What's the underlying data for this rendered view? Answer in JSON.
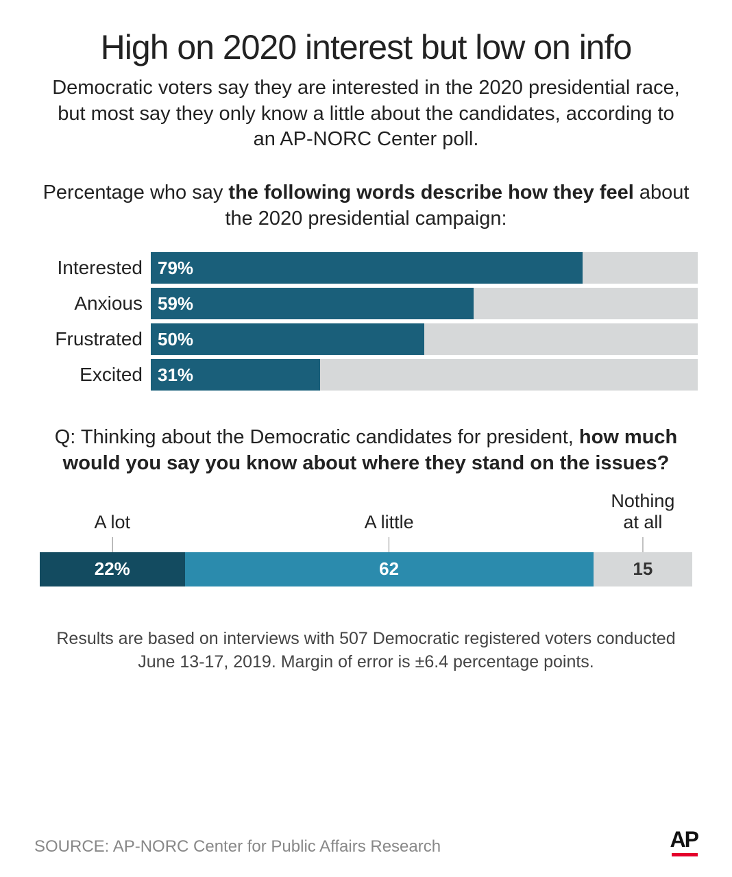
{
  "title": "High on 2020 interest but low on info",
  "subtitle": "Democratic voters say they are interested in the 2020 presidential race, but most say they only know a little about the candidates, according to an AP-NORC Center poll.",
  "section1": {
    "intro_normal1": "Percentage who say ",
    "intro_bold": "the following words describe how they feel",
    "intro_normal2": " about the 2020 presidential campaign:",
    "bar_color": "#1a5f7a",
    "track_color": "#d6d8d9",
    "label_fontsize": 28,
    "value_fontsize": 26,
    "bars": [
      {
        "label": "Interested",
        "value": 79,
        "display": "79%"
      },
      {
        "label": "Anxious",
        "value": 59,
        "display": "59%"
      },
      {
        "label": "Frustrated",
        "value": 50,
        "display": "50%"
      },
      {
        "label": "Excited",
        "value": 31,
        "display": "31%"
      }
    ]
  },
  "section2": {
    "intro_normal1": "Q: Thinking about the Democratic candidates for president, ",
    "intro_bold": "how much would you say you know about where they stand on the issues?",
    "segments": [
      {
        "label": "A lot",
        "value": 22,
        "display": "22%",
        "bg": "#134b60",
        "fg": "#ffffff"
      },
      {
        "label": "A little",
        "value": 62,
        "display": "62",
        "bg": "#2b8bad",
        "fg": "#ffffff"
      },
      {
        "label": "Nothing\nat all",
        "value": 15,
        "display": "15",
        "bg": "#d6d8d9",
        "fg": "#333333"
      }
    ]
  },
  "footnote": "Results are based on interviews with 507 Democratic registered voters conducted June 13-17, 2019. Margin of error is ±6.4 percentage points.",
  "source": "SOURCE: AP-NORC Center for Public Affairs Research",
  "logo": "AP",
  "logo_underline_color": "#e4002b"
}
